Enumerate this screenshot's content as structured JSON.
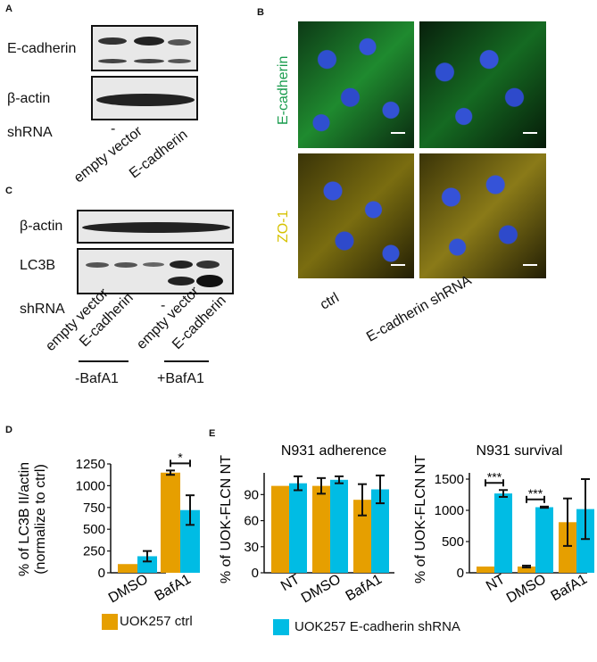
{
  "panel_labels": {
    "a": "A",
    "b": "B",
    "c": "C",
    "d": "D",
    "e": "E"
  },
  "panel_a": {
    "row1": "E-cadherin",
    "row2": "β-actin",
    "shrna_label": "shRNA",
    "dash": "-",
    "lane1": "empty vector",
    "lane2": "E-cadherin"
  },
  "panel_b": {
    "stain1": "E-cadherin",
    "stain2": "ZO-1",
    "col1": "ctrl",
    "col2": "E-cadherin shRNA"
  },
  "panel_c": {
    "row1": "β-actin",
    "row2": "LC3B",
    "shrna_label": "shRNA",
    "dash1": "-",
    "lane1": "empty vector",
    "lane2": "E-cadherin",
    "dash2": "-",
    "lane3": "empty vector",
    "lane4": "E-cadherin",
    "group1": "-BafA1",
    "group2": "+BafA1"
  },
  "colors": {
    "ctrl": "#E69F00",
    "shrna": "#00BCE4",
    "green": "#1a9c4e",
    "yellow": "#d6c200"
  },
  "chart_data": [
    {
      "type": "bar",
      "ylabel": "% of LC3B II/actin (normalize to ctrl)",
      "categories": [
        "DMSO",
        "BafA1"
      ],
      "yticks": [
        "0",
        "250",
        "500",
        "750",
        "1000",
        "1250"
      ],
      "ylim": [
        0,
        1250
      ],
      "series": [
        {
          "name": "UOK257 ctrl",
          "values": [
            100,
            1150
          ],
          "err": [
            0,
            25
          ]
        },
        {
          "name": "UOK257 E-cadherin shRNA",
          "values": [
            190,
            720
          ],
          "err": [
            60,
            170
          ]
        }
      ],
      "significance": [
        {
          "category": "BafA1",
          "label": "*"
        }
      ]
    },
    {
      "type": "bar",
      "title": "N931 adherence",
      "ylabel": "% of UOK-FLCN NT",
      "categories": [
        "NT",
        "DMSO",
        "BafA1"
      ],
      "yticks": [
        "0",
        "30",
        "60",
        "90"
      ],
      "ylim": [
        0,
        115
      ],
      "series": [
        {
          "name": "UOK257 ctrl",
          "values": [
            100,
            100,
            84
          ],
          "err": [
            0,
            9,
            18
          ]
        },
        {
          "name": "UOK257 E-cadherin shRNA",
          "values": [
            103,
            107,
            96
          ],
          "err": [
            8,
            4,
            16
          ]
        }
      ]
    },
    {
      "type": "bar",
      "title": "N931 survival",
      "ylabel": "% of UOK-FLCN NT",
      "categories": [
        "NT",
        "DMSO",
        "BafA1"
      ],
      "yticks": [
        "0",
        "500",
        "1000",
        "1500"
      ],
      "ylim": [
        0,
        1600
      ],
      "series": [
        {
          "name": "UOK257 ctrl",
          "values": [
            100,
            100,
            810
          ],
          "err": [
            0,
            15,
            380
          ]
        },
        {
          "name": "UOK257 E-cadherin shRNA",
          "values": [
            1270,
            1050,
            1020
          ],
          "err": [
            55,
            10,
            480
          ]
        }
      ],
      "significance": [
        {
          "category": "NT",
          "label": "***"
        },
        {
          "category": "DMSO",
          "label": "***"
        }
      ]
    }
  ],
  "legend": {
    "ctrl_label": "UOK257 ctrl",
    "shrna_label": "UOK257 E-cadherin shRNA"
  }
}
